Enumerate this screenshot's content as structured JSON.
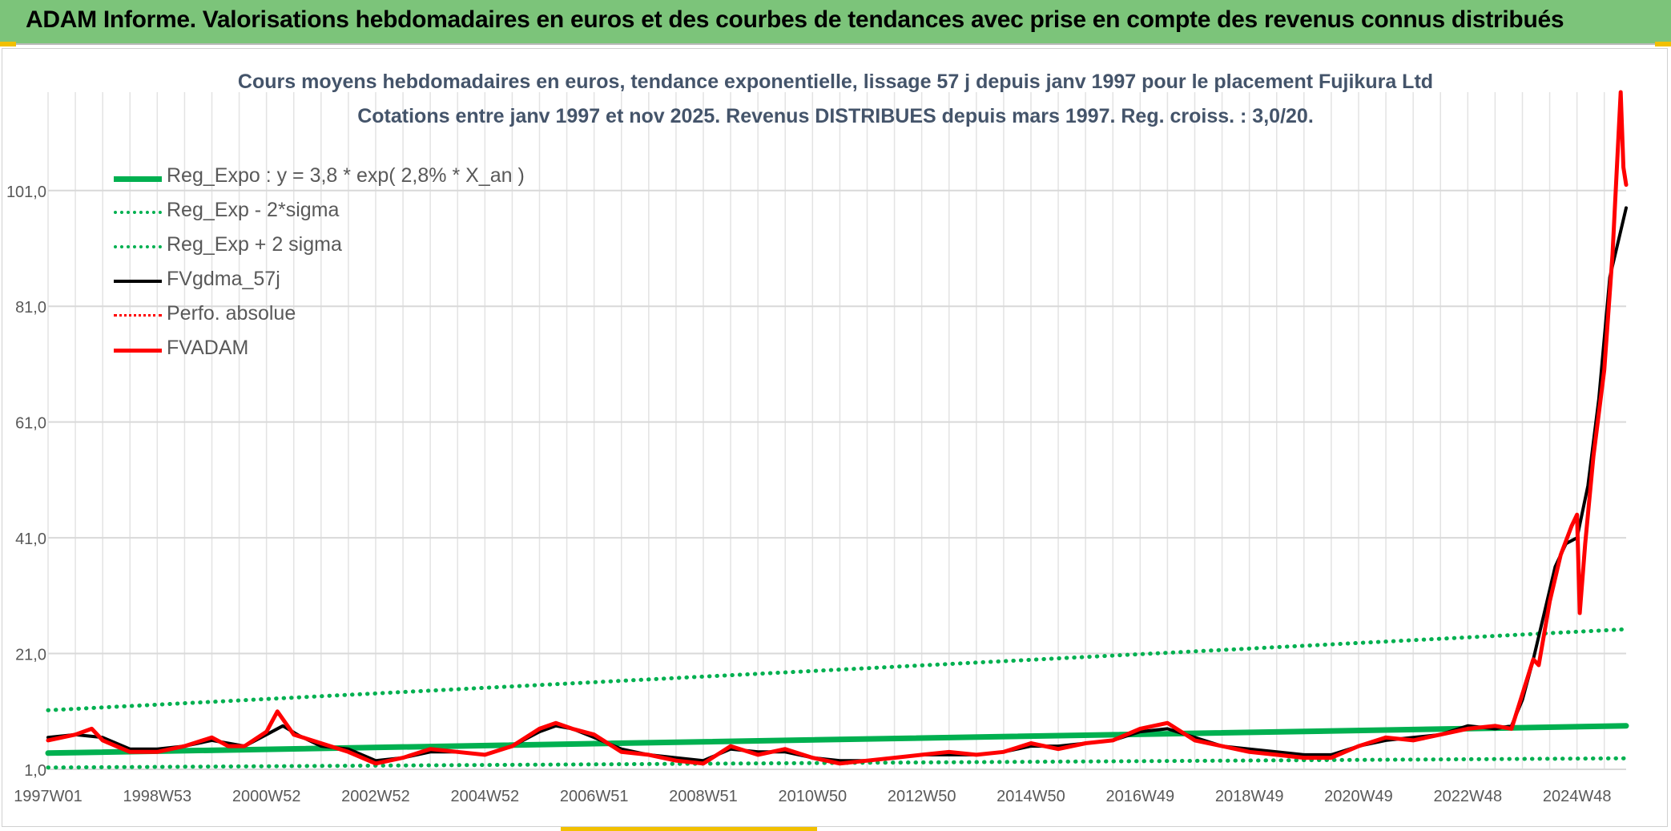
{
  "banner": {
    "title": "ADAM Informe. Valorisations hebdomadaires en euros et des courbes de tendances avec prise en compte des revenus connus distribués",
    "background": "#7cc47a"
  },
  "chart_data": {
    "type": "line",
    "title": "Cours moyens hebdomadaires en euros, tendance exponentielle, lissage 57 j depuis janv 1997 pour le placement Fujikura Ltd",
    "subtitle": "Cotations entre janv 1997 et nov 2025. Revenus DISTRIBUES depuis mars 1997. Reg. croiss. : 3,0/20.",
    "xlabel": "",
    "ylabel": "",
    "x_tick_labels": [
      "1997W01",
      "1998W53",
      "2000W52",
      "2002W52",
      "2004W52",
      "2006W51",
      "2008W51",
      "2010W50",
      "2012W50",
      "2014W50",
      "2016W49",
      "2018W49",
      "2020W49",
      "2022W48",
      "2024W48"
    ],
    "x_ticks_year": [
      1997.0,
      1999.0,
      2001.0,
      2003.0,
      2005.0,
      2007.0,
      2009.0,
      2011.0,
      2013.0,
      2015.0,
      2017.0,
      2019.0,
      2021.0,
      2023.0,
      2025.0
    ],
    "y_ticks": [
      1,
      21,
      41,
      61,
      81,
      101
    ],
    "y_tick_labels": [
      "1,0",
      "21,0",
      "41,0",
      "61,0",
      "81,0",
      "101,0"
    ],
    "ylim": [
      1,
      118
    ],
    "xlim": [
      1997.0,
      2025.9
    ],
    "grid": true,
    "legend_position": "top-left",
    "series": [
      {
        "name": "Reg_Expo : y = 3,8 * exp( 2,8% *  X_an )",
        "color": "#00b050",
        "style": "solid",
        "width": 7,
        "x": [
          1997.0,
          2025.9
        ],
        "y": [
          3.8,
          8.5
        ]
      },
      {
        "name": "Reg_Exp - 2*sigma",
        "color": "#00b050",
        "style": "dotted",
        "width": 5,
        "x": [
          1997.0,
          2025.9
        ],
        "y": [
          1.3,
          2.9
        ]
      },
      {
        "name": "Reg_Exp + 2 sigma",
        "color": "#00b050",
        "style": "dotted",
        "width": 5,
        "x": [
          1997.0,
          2025.9
        ],
        "y": [
          11.2,
          25.2
        ]
      },
      {
        "name": "FVgdma_57j",
        "color": "#000000",
        "style": "solid",
        "width": 4,
        "x": [
          1997.0,
          1997.5,
          1998.0,
          1998.5,
          1999.0,
          1999.5,
          2000.0,
          2000.3,
          2000.6,
          2001.0,
          2001.3,
          2001.6,
          2002.0,
          2002.5,
          2003.0,
          2003.5,
          2004.0,
          2004.5,
          2005.0,
          2005.5,
          2006.0,
          2006.3,
          2006.6,
          2007.0,
          2007.5,
          2008.0,
          2008.5,
          2009.0,
          2009.5,
          2010.0,
          2010.5,
          2011.0,
          2011.5,
          2012.0,
          2012.5,
          2013.0,
          2013.5,
          2014.0,
          2014.5,
          2015.0,
          2015.5,
          2016.0,
          2016.5,
          2017.0,
          2017.5,
          2018.0,
          2018.5,
          2019.0,
          2019.5,
          2020.0,
          2020.5,
          2021.0,
          2021.5,
          2022.0,
          2022.5,
          2023.0,
          2023.5,
          2023.8,
          2024.0,
          2024.2,
          2024.4,
          2024.6,
          2024.8,
          2025.0,
          2025.2,
          2025.4,
          2025.6,
          2025.9
        ],
        "y": [
          6.5,
          7.0,
          6.5,
          4.5,
          4.5,
          5.0,
          6.0,
          5.5,
          5.0,
          7.0,
          8.5,
          6.8,
          5.0,
          4.5,
          2.5,
          3.0,
          4.0,
          4.0,
          3.5,
          5.0,
          7.5,
          8.5,
          8.0,
          6.5,
          4.5,
          3.5,
          3.0,
          2.5,
          4.5,
          4.0,
          4.0,
          3.0,
          2.5,
          2.5,
          3.0,
          3.5,
          3.5,
          3.5,
          4.0,
          5.0,
          5.0,
          5.5,
          6.0,
          7.5,
          8.0,
          6.5,
          5.0,
          4.5,
          4.0,
          3.5,
          3.5,
          5.0,
          6.0,
          6.5,
          7.0,
          8.5,
          8.0,
          8.5,
          13.0,
          20.0,
          28.0,
          36.0,
          40.0,
          41.0,
          50.0,
          65.0,
          86.0,
          98.0
        ]
      },
      {
        "name": "Perfo. absolue",
        "color": "#ff0000",
        "style": "dotted",
        "width": 4,
        "x": [],
        "y": []
      },
      {
        "name": "FVADAM",
        "color": "#ff0000",
        "style": "solid",
        "width": 5,
        "x": [
          1997.0,
          1997.5,
          1997.8,
          1998.0,
          1998.5,
          1999.0,
          1999.5,
          2000.0,
          2000.3,
          2000.6,
          2001.0,
          2001.2,
          2001.5,
          2002.0,
          2002.5,
          2003.0,
          2003.5,
          2004.0,
          2004.5,
          2005.0,
          2005.5,
          2006.0,
          2006.3,
          2006.6,
          2007.0,
          2007.5,
          2008.0,
          2008.5,
          2009.0,
          2009.5,
          2010.0,
          2010.5,
          2011.0,
          2011.5,
          2012.0,
          2012.5,
          2013.0,
          2013.5,
          2014.0,
          2014.5,
          2015.0,
          2015.5,
          2016.0,
          2016.5,
          2017.0,
          2017.5,
          2018.0,
          2018.5,
          2019.0,
          2019.5,
          2020.0,
          2020.5,
          2021.0,
          2021.5,
          2022.0,
          2022.5,
          2023.0,
          2023.5,
          2023.8,
          2024.0,
          2024.2,
          2024.3,
          2024.5,
          2024.7,
          2024.9,
          2025.0,
          2025.05,
          2025.15,
          2025.3,
          2025.5,
          2025.65,
          2025.8,
          2025.85,
          2025.9
        ],
        "y": [
          6.0,
          7.0,
          8.0,
          6.0,
          4.0,
          4.0,
          5.0,
          6.5,
          5.0,
          5.0,
          7.5,
          11.0,
          7.0,
          5.5,
          4.0,
          2.0,
          3.0,
          4.5,
          4.0,
          3.5,
          5.0,
          8.0,
          9.0,
          8.0,
          7.0,
          4.0,
          3.5,
          2.5,
          2.0,
          5.0,
          3.5,
          4.5,
          3.0,
          2.0,
          2.5,
          3.0,
          3.5,
          4.0,
          3.5,
          4.0,
          5.5,
          4.5,
          5.5,
          6.0,
          8.0,
          9.0,
          6.0,
          5.0,
          4.0,
          3.5,
          3.0,
          3.0,
          5.0,
          6.5,
          6.0,
          7.0,
          8.0,
          8.5,
          8.0,
          14.0,
          20.0,
          19.0,
          30.0,
          38.0,
          43.0,
          45.0,
          28.0,
          40.0,
          55.0,
          70.0,
          90.0,
          118.0,
          105.0,
          102.0
        ]
      }
    ]
  }
}
